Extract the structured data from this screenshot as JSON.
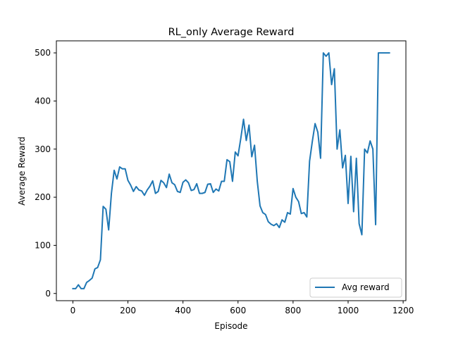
{
  "chart_data": {
    "type": "line",
    "title": "RL_only Average Reward",
    "xlabel": "Episode",
    "ylabel": "Average Reward",
    "xlim": [
      -60,
      1210
    ],
    "ylim": [
      -15,
      525
    ],
    "xticks": [
      0,
      200,
      400,
      600,
      800,
      1000,
      1200
    ],
    "yticks": [
      0,
      100,
      200,
      300,
      400,
      500
    ],
    "grid": false,
    "legend": "lower-right",
    "series": [
      {
        "name": "Avg reward",
        "color": "#1f77b4",
        "x": [
          0,
          10,
          20,
          30,
          40,
          50,
          60,
          70,
          80,
          90,
          100,
          110,
          120,
          130,
          140,
          150,
          160,
          170,
          180,
          190,
          200,
          210,
          220,
          230,
          240,
          250,
          260,
          270,
          280,
          290,
          300,
          310,
          320,
          330,
          340,
          350,
          360,
          370,
          380,
          390,
          400,
          410,
          420,
          430,
          440,
          450,
          460,
          470,
          480,
          490,
          500,
          510,
          520,
          530,
          540,
          550,
          560,
          570,
          580,
          590,
          600,
          610,
          620,
          630,
          640,
          650,
          660,
          670,
          680,
          690,
          700,
          710,
          720,
          730,
          740,
          750,
          760,
          770,
          780,
          790,
          800,
          810,
          820,
          830,
          840,
          850,
          860,
          870,
          880,
          890,
          900,
          910,
          920,
          930,
          940,
          950,
          960,
          970,
          980,
          990,
          1000,
          1010,
          1020,
          1030,
          1040,
          1050,
          1060,
          1070,
          1080,
          1090,
          1100,
          1110,
          1120,
          1130,
          1140,
          1150
        ],
        "y": [
          10,
          10,
          18,
          10,
          10,
          23,
          27,
          32,
          51,
          54,
          70,
          181,
          175,
          132,
          208,
          256,
          238,
          263,
          259,
          259,
          235,
          225,
          212,
          222,
          215,
          213,
          204,
          215,
          223,
          234,
          208,
          212,
          235,
          230,
          220,
          248,
          230,
          226,
          212,
          210,
          231,
          236,
          230,
          214,
          216,
          228,
          208,
          208,
          210,
          227,
          228,
          210,
          217,
          213,
          233,
          233,
          278,
          274,
          233,
          294,
          286,
          322,
          362,
          318,
          350,
          284,
          308,
          233,
          182,
          168,
          164,
          149,
          144,
          141,
          145,
          137,
          153,
          148,
          168,
          165,
          218,
          200,
          191,
          166,
          168,
          159,
          275,
          316,
          353,
          335,
          281,
          500,
          493,
          500,
          434,
          467,
          300,
          340,
          261,
          287,
          187,
          285,
          170,
          281,
          145,
          122,
          300,
          292,
          317,
          300,
          143,
          500,
          500,
          500,
          500,
          500
        ]
      }
    ]
  }
}
